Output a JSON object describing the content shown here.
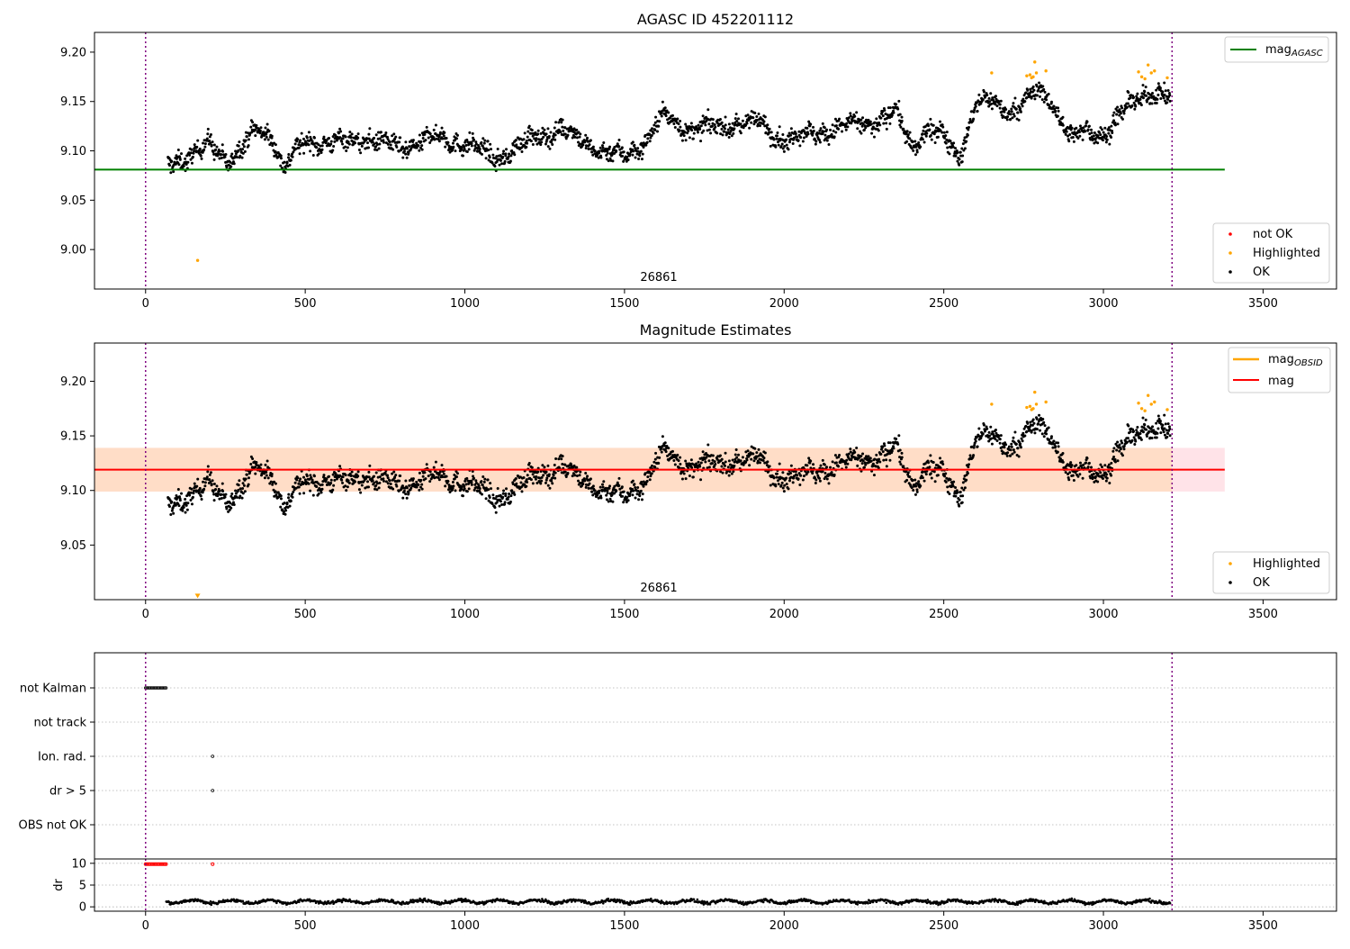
{
  "colors": {
    "ok": "#000000",
    "highlighted": "#ffa500",
    "not_ok": "#ff0000",
    "agasc_line": "#008000",
    "mag_line": "#ff0000",
    "obsid_line": "#ffa500",
    "obsid_band": "#ffdab9",
    "mag_band": "#ffc0cb",
    "time_marker": "#800080"
  },
  "chart_data": [
    {
      "type": "scatter",
      "title": "AGASC ID 452201112",
      "xlim": [
        -160,
        3730
      ],
      "ylim": [
        8.96,
        9.22
      ],
      "xticks": [
        0,
        500,
        1000,
        1500,
        2000,
        2500,
        3000,
        3500
      ],
      "yticks": [
        9.0,
        9.05,
        9.1,
        9.15,
        9.2
      ],
      "ytick_labels": [
        "9.00",
        "9.05",
        "9.10",
        "9.15",
        "9.20"
      ],
      "grid": false,
      "obsid_label": "26861",
      "obsid_markers_x": [
        0,
        3215
      ],
      "hlines": [
        {
          "name": "mag_AGASC",
          "y": 9.081,
          "x": [
            -160,
            3380
          ],
          "color": "green"
        }
      ],
      "legends": [
        {
          "placement": "upper right",
          "entries": [
            {
              "label": "mag",
              "subscript": "AGASC",
              "kind": "line",
              "color": "green"
            }
          ]
        },
        {
          "placement": "lower right",
          "entries": [
            {
              "label": "not OK",
              "kind": "dot",
              "color": "red"
            },
            {
              "label": "Highlighted",
              "kind": "dot",
              "color": "orange"
            },
            {
              "label": "OK",
              "kind": "dot",
              "color": "black"
            }
          ]
        }
      ],
      "series": [
        {
          "name": "OK",
          "x_range": [
            70,
            3210
          ],
          "trend": [
            [
              70,
              9.089
            ],
            [
              150,
              9.095
            ],
            [
              200,
              9.107
            ],
            [
              260,
              9.091
            ],
            [
              300,
              9.102
            ],
            [
              350,
              9.122
            ],
            [
              400,
              9.115
            ],
            [
              430,
              9.082
            ],
            [
              460,
              9.094
            ],
            [
              500,
              9.11
            ],
            [
              600,
              9.108
            ],
            [
              700,
              9.113
            ],
            [
              800,
              9.102
            ],
            [
              900,
              9.114
            ],
            [
              1000,
              9.108
            ],
            [
              1100,
              9.092
            ],
            [
              1200,
              9.11
            ],
            [
              1300,
              9.123
            ],
            [
              1400,
              9.104
            ],
            [
              1500,
              9.094
            ],
            [
              1560,
              9.108
            ],
            [
              1620,
              9.135
            ],
            [
              1700,
              9.122
            ],
            [
              1800,
              9.124
            ],
            [
              1900,
              9.13
            ],
            [
              2000,
              9.112
            ],
            [
              2100,
              9.118
            ],
            [
              2200,
              9.125
            ],
            [
              2300,
              9.13
            ],
            [
              2350,
              9.14
            ],
            [
              2400,
              9.103
            ],
            [
              2450,
              9.122
            ],
            [
              2500,
              9.114
            ],
            [
              2550,
              9.095
            ],
            [
              2600,
              9.147
            ],
            [
              2650,
              9.15
            ],
            [
              2700,
              9.14
            ],
            [
              2780,
              9.155
            ],
            [
              2800,
              9.16
            ],
            [
              2850,
              9.145
            ],
            [
              2900,
              9.112
            ],
            [
              2950,
              9.12
            ],
            [
              3000,
              9.117
            ],
            [
              3050,
              9.135
            ],
            [
              3100,
              9.15
            ],
            [
              3150,
              9.162
            ],
            [
              3210,
              9.152
            ]
          ],
          "spread": 0.009
        },
        {
          "name": "Highlighted",
          "points": [
            [
              163,
              8.989
            ],
            [
              2650,
              9.179
            ],
            [
              2770,
              9.177
            ],
            [
              2775,
              9.174
            ],
            [
              2780,
              9.175
            ],
            [
              2785,
              9.19
            ],
            [
              2760,
              9.176
            ],
            [
              2790,
              9.179
            ],
            [
              2820,
              9.181
            ],
            [
              3110,
              9.18
            ],
            [
              3120,
              9.175
            ],
            [
              3130,
              9.173
            ],
            [
              3140,
              9.187
            ],
            [
              3150,
              9.179
            ],
            [
              3160,
              9.181
            ],
            [
              3200,
              9.174
            ]
          ]
        }
      ]
    },
    {
      "type": "scatter",
      "title": "Magnitude Estimates",
      "xlim": [
        -160,
        3730
      ],
      "ylim": [
        9.0,
        9.235
      ],
      "xticks": [
        0,
        500,
        1000,
        1500,
        2000,
        2500,
        3000,
        3500
      ],
      "yticks": [
        9.05,
        9.1,
        9.15,
        9.2
      ],
      "ytick_labels": [
        "9.05",
        "9.10",
        "9.15",
        "9.20"
      ],
      "grid": false,
      "obsid_label": "26861",
      "obsid_markers_x": [
        0,
        3215
      ],
      "hlines": [
        {
          "name": "mag_OBSID",
          "y": 9.119,
          "x": [
            -160,
            3215
          ],
          "color": "orange",
          "band": [
            9.099,
            9.139
          ]
        },
        {
          "name": "mag",
          "y": 9.119,
          "x": [
            -160,
            3380
          ],
          "color": "red",
          "band": [
            9.099,
            9.139
          ]
        }
      ],
      "legends": [
        {
          "placement": "upper right",
          "entries": [
            {
              "label": "mag",
              "subscript": "OBSID",
              "kind": "line",
              "color": "orange"
            },
            {
              "label": "mag",
              "subscript": "",
              "kind": "line",
              "color": "red"
            }
          ]
        },
        {
          "placement": "lower right",
          "entries": [
            {
              "label": "Highlighted",
              "kind": "dot",
              "color": "orange"
            },
            {
              "label": "OK",
              "kind": "dot",
              "color": "black"
            }
          ]
        }
      ],
      "series": [
        {
          "name": "OK",
          "same_as_panel": 0
        },
        {
          "name": "Highlighted",
          "same_as_panel": 0,
          "off_scale_marker": [
            163,
            9.003
          ]
        }
      ]
    },
    {
      "type": "scatter",
      "title": "",
      "xlim": [
        -160,
        3730
      ],
      "categories": [
        "not Kalman",
        "not track",
        "Ion. rad.",
        "dr > 5",
        "OBS not OK"
      ],
      "grid": true,
      "obsid_markers_x": [
        0,
        3215
      ],
      "flags": [
        {
          "category": "not Kalman",
          "x": [
            0,
            4,
            8,
            12,
            16,
            20,
            24,
            28,
            32,
            36,
            40,
            44,
            48,
            52,
            56,
            60,
            64
          ]
        },
        {
          "category": "Ion. rad.",
          "x": [
            210
          ]
        },
        {
          "category": "dr > 5",
          "x": [
            210
          ]
        }
      ]
    },
    {
      "type": "scatter",
      "title": "",
      "ylabel": "dr",
      "xlim": [
        -160,
        3730
      ],
      "ylim": [
        -1,
        11
      ],
      "xticks": [
        0,
        500,
        1000,
        1500,
        2000,
        2500,
        3000,
        3500
      ],
      "yticks": [
        0,
        5,
        10
      ],
      "ytick_labels": [
        "0",
        "5",
        "10"
      ],
      "grid": true,
      "obsid_markers_x": [
        0,
        3215
      ],
      "series": [
        {
          "name": "dr",
          "x_range": [
            65,
            3210
          ],
          "mean": 1.2,
          "spread": 0.6
        },
        {
          "name": "clipped",
          "color": "red",
          "y": 9.8,
          "x": [
            0,
            4,
            8,
            12,
            16,
            20,
            24,
            28,
            32,
            36,
            40,
            44,
            48,
            52,
            56,
            60,
            64,
            210
          ]
        }
      ]
    }
  ]
}
